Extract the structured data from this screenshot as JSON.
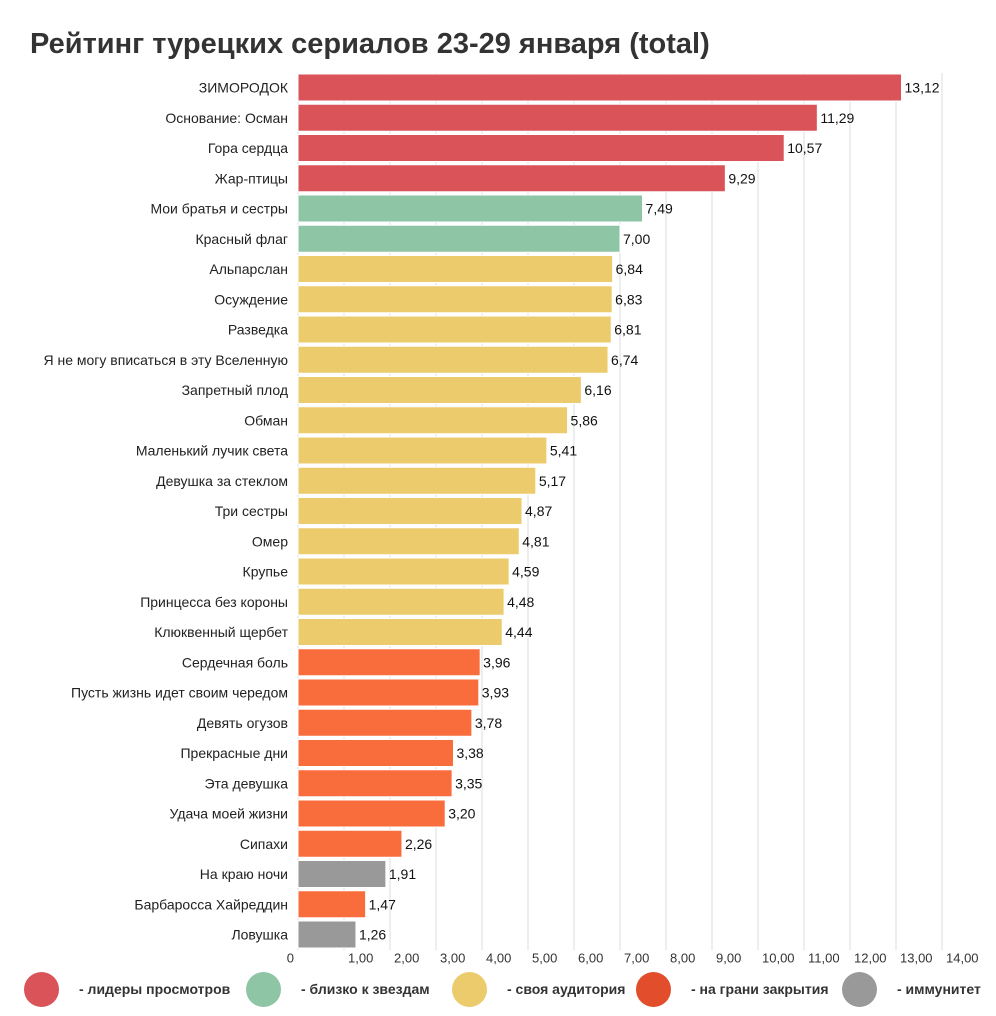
{
  "title": "Рейтинг турецких сериалов 23-29 января (total)",
  "chart_data": {
    "type": "bar",
    "orientation": "horizontal",
    "xlim": [
      0,
      14
    ],
    "xticks": [
      "0",
      "1,00",
      "2,00",
      "3,00",
      "4,00",
      "5,00",
      "6,00",
      "7,00",
      "8,00",
      "9,00",
      "10,00",
      "11,00",
      "12,00",
      "13,00",
      "14,00"
    ],
    "grid": "vertical",
    "categories": [
      "ЗИМОРОДОК",
      "Основание: Осман",
      "Гора сердца",
      "Жар-птицы",
      "Мои братья и сестры",
      "Красный флаг",
      "Альпарслан",
      "Осуждение",
      "Разведка",
      "Я не могу вписаться в эту Вселенную",
      "Запретный плод",
      "Обман",
      "Маленький лучик света",
      "Девушка за стеклом",
      "Три сестры",
      "Омер",
      "Крупье",
      "Принцесса без короны",
      "Клюквенный щербет",
      "Сердечная боль",
      "Пусть жизнь идет своим чередом",
      "Девять огузов",
      "Прекрасные дни",
      "Эта девушка",
      "Удача моей жизни",
      "Сипахи",
      "На краю ночи",
      "Барбаросса Хайреддин",
      "Ловушка"
    ],
    "values": [
      13.12,
      11.29,
      10.57,
      9.29,
      7.49,
      7.0,
      6.84,
      6.83,
      6.81,
      6.74,
      6.16,
      5.86,
      5.41,
      5.17,
      4.87,
      4.81,
      4.59,
      4.48,
      4.44,
      3.96,
      3.93,
      3.78,
      3.38,
      3.35,
      3.2,
      2.26,
      1.91,
      1.47,
      1.26
    ],
    "value_labels": [
      "13,12",
      "11,29",
      "10,57",
      "9,29",
      "7,49",
      "7,00",
      "6,84",
      "6,83",
      "6,81",
      "6,74",
      "6,16",
      "5,86",
      "5,41",
      "5,17",
      "4,87",
      "4,81",
      "4,59",
      "4,48",
      "4,44",
      "3,96",
      "3,93",
      "3,78",
      "3,38",
      "3,35",
      "3,20",
      "2,26",
      "1,91",
      "1,47",
      "1,26"
    ],
    "groups": [
      "leaders",
      "leaders",
      "leaders",
      "leaders",
      "stars",
      "stars",
      "audience",
      "audience",
      "audience",
      "audience",
      "audience",
      "audience",
      "audience",
      "audience",
      "audience",
      "audience",
      "audience",
      "audience",
      "audience",
      "closing",
      "closing",
      "closing",
      "closing",
      "closing",
      "closing",
      "closing",
      "immunity",
      "closing",
      "immunity"
    ],
    "group_colors": {
      "leaders": "#d95358",
      "stars": "#8ec5a4",
      "audience": "#eccb6c",
      "closing": "#f96c3b",
      "immunity": "#999999"
    },
    "legend_position": "bottom",
    "legend": [
      {
        "group": "leaders",
        "label": "- лидеры просмотров",
        "color": "#d95358"
      },
      {
        "group": "stars",
        "label": "- близко к звездам",
        "color": "#8ec5a4"
      },
      {
        "group": "audience",
        "label": "- своя аудитория",
        "color": "#eccb6c"
      },
      {
        "group": "closing",
        "label": "- на грани закрытия",
        "color": "#e24d2c"
      },
      {
        "group": "immunity",
        "label": "- иммунитет",
        "color": "#999999"
      }
    ]
  }
}
